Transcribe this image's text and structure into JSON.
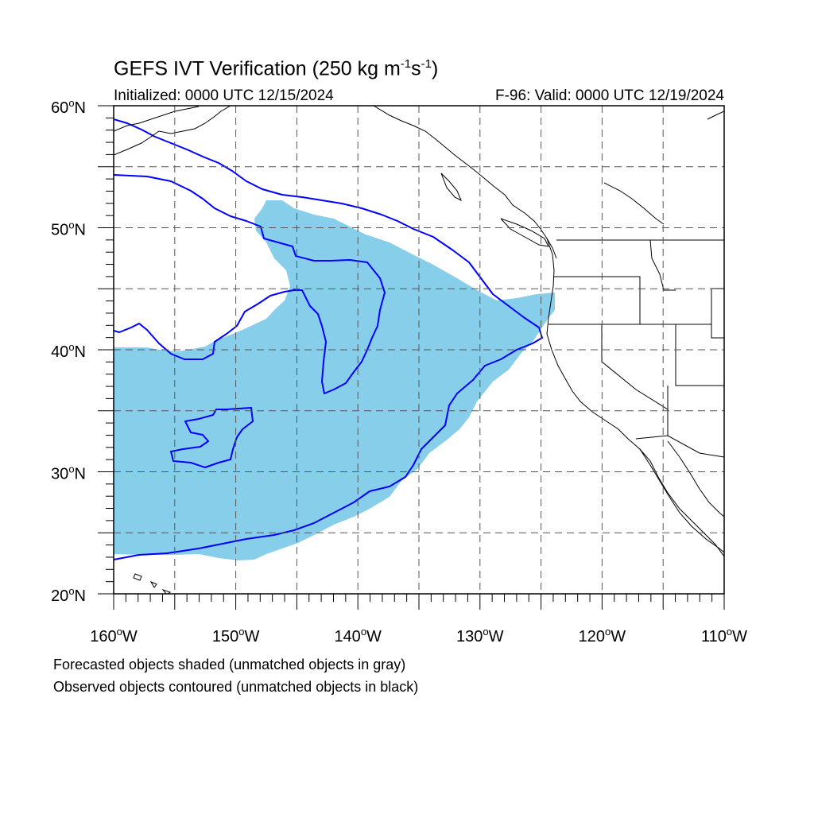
{
  "header": {
    "title_main": "GEFS IVT Verification (250 kg m",
    "title_exp1": "-1",
    "title_mid": "s",
    "title_exp2": "-1",
    "title_end": ")",
    "initialized": "Initialized: 0000 UTC 12/15/2024",
    "valid": "F-96: Valid: 0000 UTC 12/19/2024"
  },
  "map": {
    "lon_range": [
      -160,
      -110
    ],
    "lat_range": [
      20,
      60
    ],
    "lon_labels": [
      "160",
      "150",
      "140",
      "130",
      "120",
      "110"
    ],
    "lat_labels": [
      "60",
      "50",
      "40",
      "30",
      "20"
    ],
    "lon_suffix": "W",
    "lat_suffix": "N",
    "forecast_color": "#87ceeb",
    "observed_color": "#0000ff",
    "coast_color": "#000000"
  },
  "notes": {
    "forecast": "Forecasted objects shaded (unmatched objects in gray)",
    "observed": "Observed objects contoured (unmatched objects in black)"
  }
}
